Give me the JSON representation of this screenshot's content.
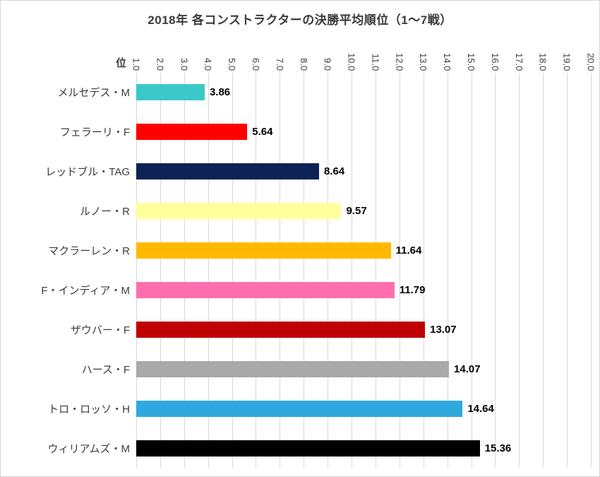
{
  "chart_data": {
    "type": "bar",
    "orientation": "horizontal",
    "title": "2018年 各コンストラクターの決勝平均順位（1～7戦）",
    "axis_unit_label": "位",
    "x_min": 1.0,
    "x_max": 20.0,
    "tick_labels": [
      "1.0",
      "2.0",
      "3.0",
      "4.0",
      "5.0",
      "6.0",
      "7.0",
      "8.0",
      "9.0",
      "10.0",
      "11.0",
      "12.0",
      "13.0",
      "14.0",
      "15.0",
      "16.0",
      "17.0",
      "18.0",
      "19.0",
      "20.0"
    ],
    "grid": true,
    "gridline_color": "#d9d9d9",
    "legend": "none",
    "categories": [
      "メルセデス・M",
      "フェラーリ・F",
      "レッドブル・TAG",
      "ルノー・R",
      "マクラーレン・R",
      "F・インディア・M",
      "ザウバー・F",
      "ハース・F",
      "トロ・ロッソ・H",
      "ウィリアムズ・M"
    ],
    "values": [
      3.86,
      5.64,
      8.64,
      9.57,
      11.64,
      11.79,
      13.07,
      14.07,
      14.64,
      15.36
    ],
    "value_labels": [
      "3.86",
      "5.64",
      "8.64",
      "9.57",
      "11.64",
      "11.79",
      "13.07",
      "14.07",
      "14.64",
      "15.36"
    ],
    "bar_colors": [
      "#3cc8c8",
      "#ff0000",
      "#0e2255",
      "#ffff9e",
      "#ffb900",
      "#ff6fae",
      "#c00000",
      "#a9a9a9",
      "#2ea9df",
      "#000000"
    ]
  }
}
